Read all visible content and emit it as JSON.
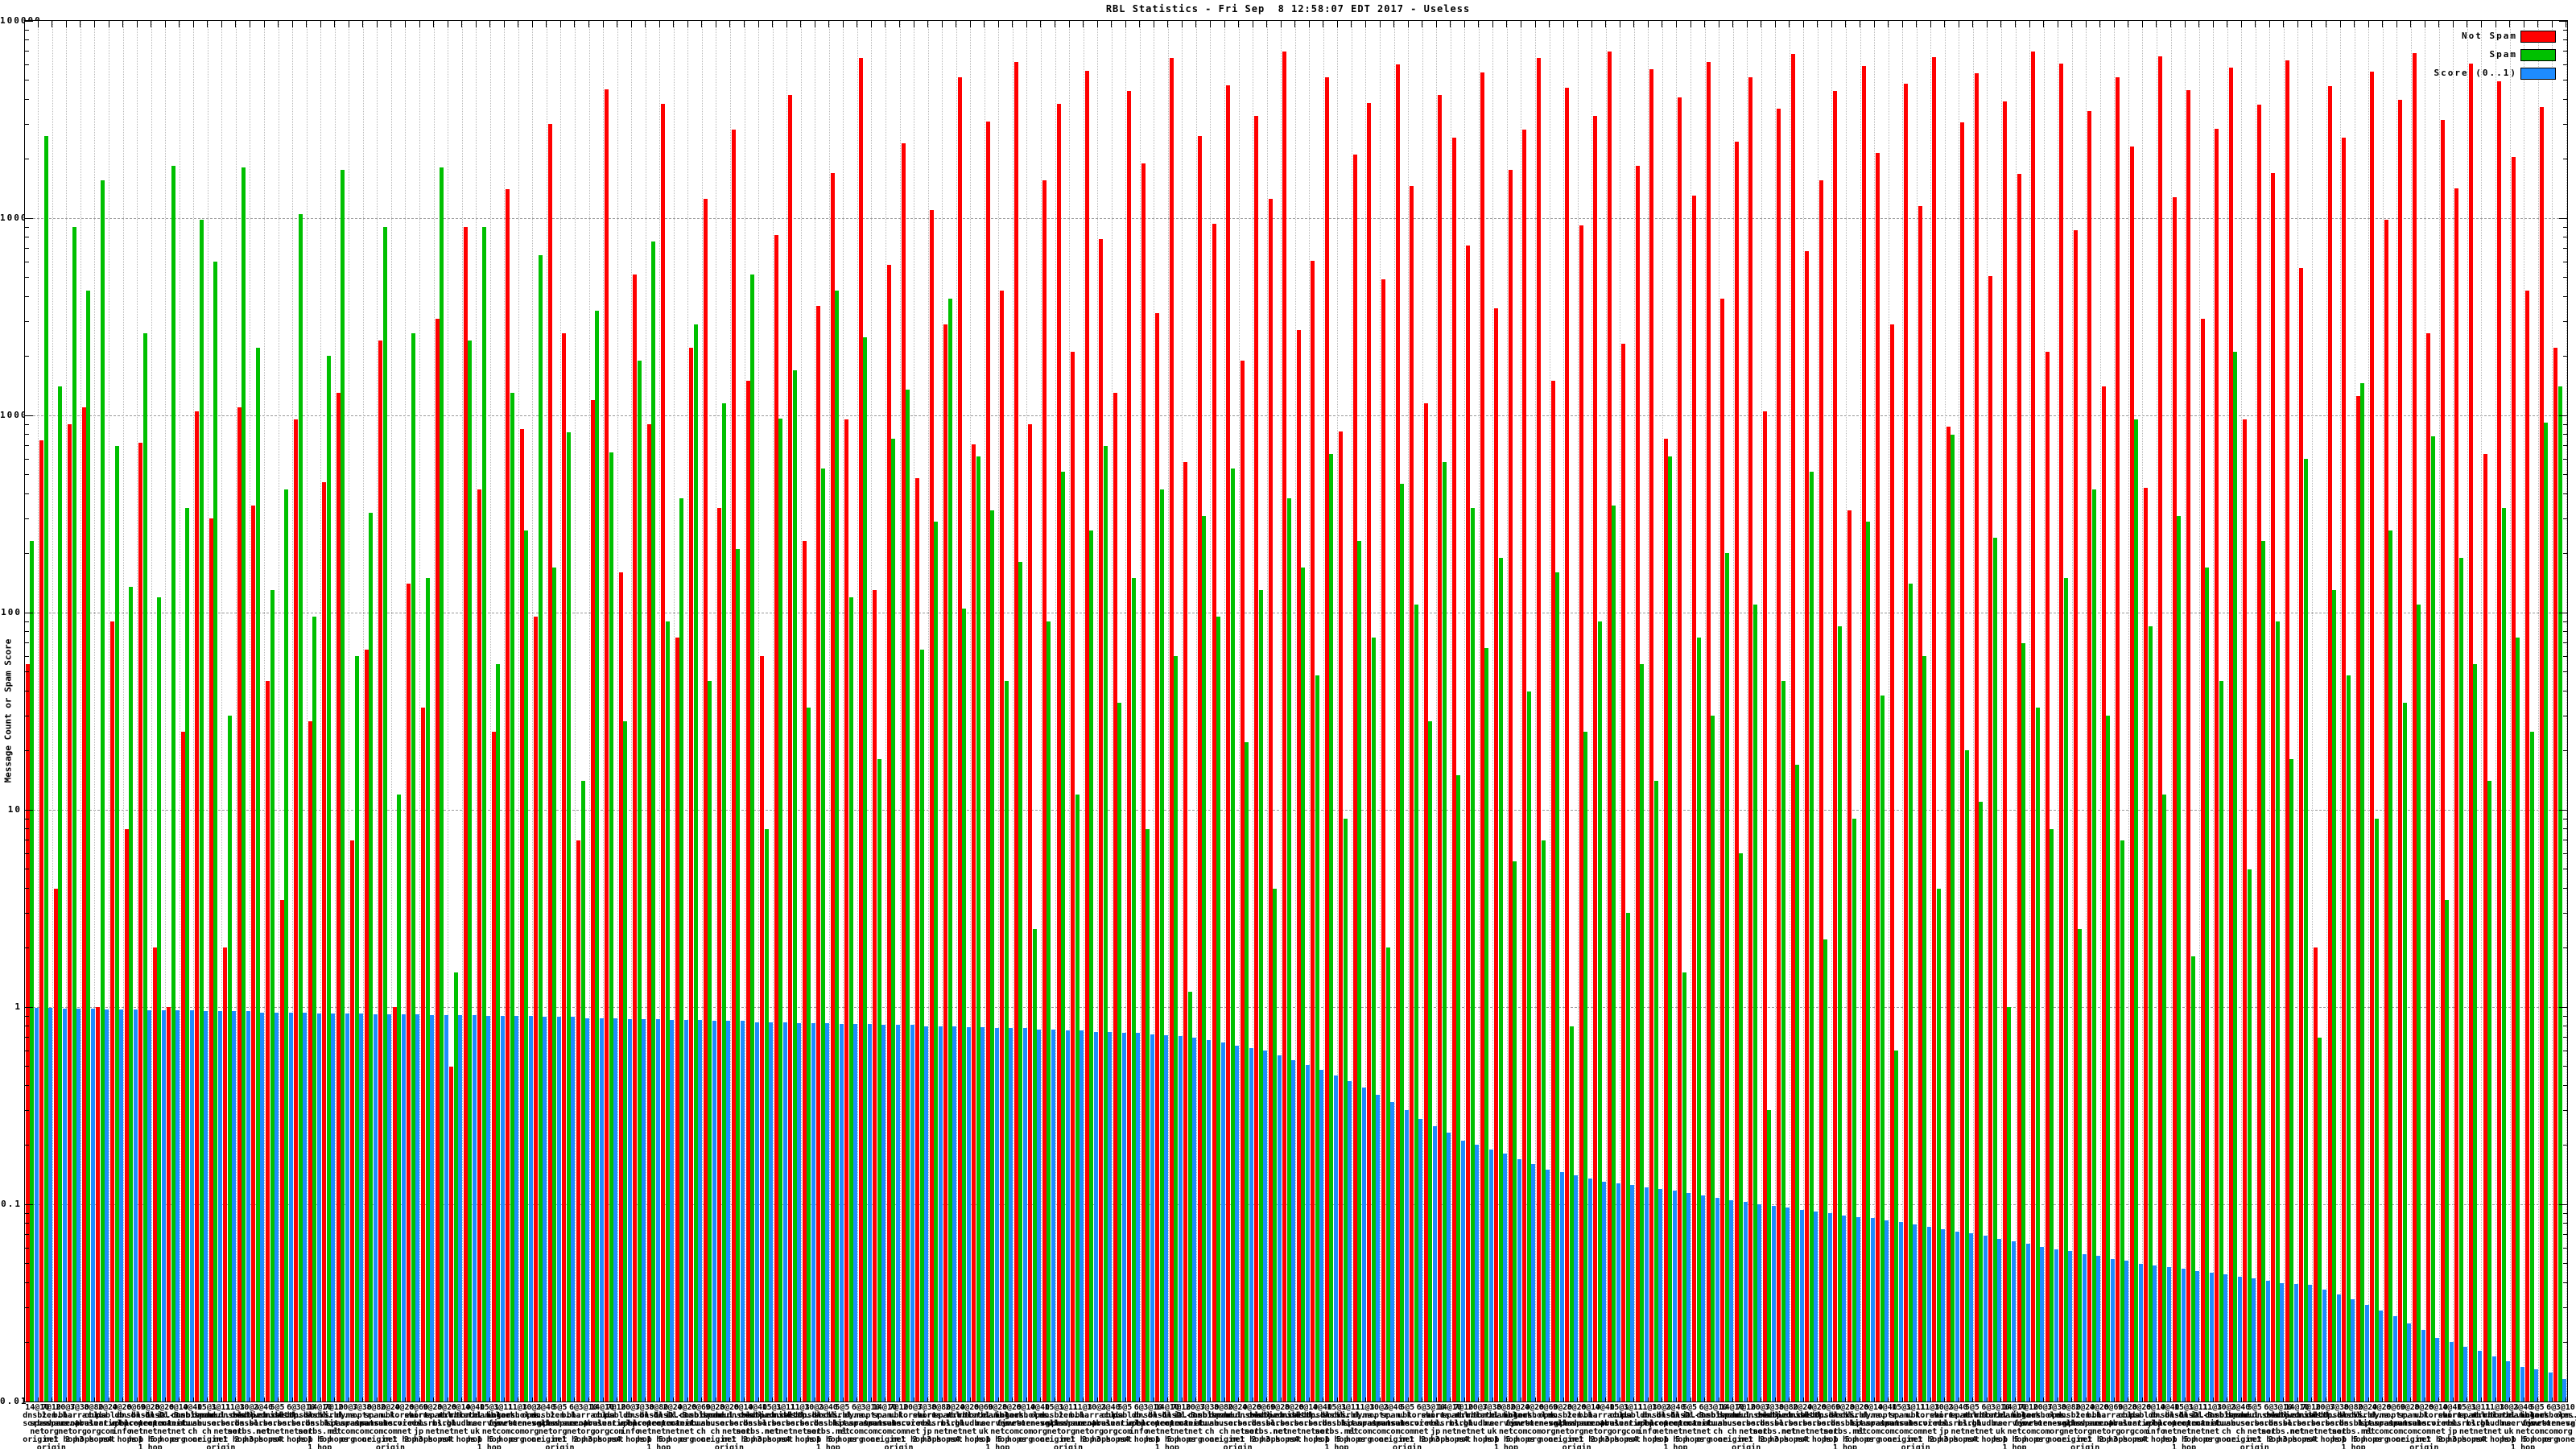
{
  "window": {
    "title": "RBL Statistics - Fri Sep  8 12:58:07 EDT 2017 - Useless"
  },
  "y_axis": {
    "label": "Message Count or Spam Score",
    "ticks": [
      "100000",
      "10000",
      "1000",
      "100",
      "10",
      "1",
      "0.1",
      "0.01"
    ],
    "tick_values": [
      100000,
      10000,
      1000,
      100,
      10,
      1,
      0.1,
      0.01
    ]
  },
  "legend": {
    "position": "top-right",
    "items": [
      {
        "label": "Not Spam",
        "color": "#ff0000"
      },
      {
        "label": "Spam",
        "color": "#00c000"
      },
      {
        "label": "Score (0..1)",
        "color": "#1e8cff"
      }
    ]
  },
  "chart_data": {
    "type": "bar",
    "scale": "log",
    "title": "RBL Statistics - Fri Sep  8 12:58:07 EDT 2017 - Useless",
    "xlabel": "",
    "ylabel": "Message Count or Spam Score",
    "ylim": [
      0.01,
      100000
    ],
    "baseline": 0.01,
    "grid": {
      "vertical": "dotted per category",
      "horizontal": "dashed per decade"
    },
    "legend_position": "top-right",
    "series": [
      {
        "name": "Not Spam",
        "color": "#ff0000",
        "values": [
          55,
          750,
          4,
          900,
          1100,
          1,
          90,
          8,
          730,
          2,
          1,
          25,
          1050,
          300,
          2,
          1100,
          350,
          45,
          3.5,
          950,
          28,
          460,
          1300,
          7,
          65,
          2400,
          1,
          140,
          33,
          3100,
          0.5,
          9000,
          420,
          25,
          14000,
          850,
          95,
          30000,
          2600,
          7,
          1200,
          45000,
          160,
          5200,
          900,
          38000,
          75,
          2200,
          12500,
          340,
          28000,
          1500,
          60,
          8200,
          42000,
          230,
          3600,
          17000,
          950,
          65000,
          130,
          5800,
          24000,
          480,
          11000,
          2900,
          52000,
          710,
          31000,
          4300,
          62000,
          900,
          15500,
          38000,
          2100,
          56000,
          7800,
          1300,
          44000,
          19000,
          3300,
          65000,
          580,
          26000,
          9400,
          47000,
          1900,
          33000,
          12500,
          70000,
          2700,
          6100,
          52000,
          830,
          21000,
          38500,
          4900,
          60000,
          14500,
          1150,
          42000,
          25500,
          7300,
          55000,
          3500,
          17500,
          28000,
          65000,
          1500,
          46000,
          9200,
          33000,
          70000,
          2300,
          18500,
          57000,
          760,
          41000,
          13000,
          62000,
          3900,
          24500,
          52000,
          1050,
          36000,
          68000,
          6800,
          15500,
          44000,
          330,
          59000,
          21500,
          2900,
          48000,
          11500,
          65500,
          880,
          30500,
          54500,
          5100,
          39000,
          16800,
          70000,
          2100,
          61000,
          8700,
          35000,
          1400,
          52000,
          23000,
          430,
          66000,
          12800,
          44500,
          3100,
          28500,
          58000,
          950,
          37500,
          17000,
          63000,
          5600,
          2,
          46500,
          25500,
          1250,
          55500,
          9800,
          40000,
          68500,
          2600,
          31500,
          14200,
          60500,
          640,
          49500,
          20500,
          4300,
          36500,
          2200
        ]
      },
      {
        "name": "Spam",
        "color": "#00c000",
        "values": [
          230,
          26000,
          1400,
          9000,
          4300,
          15500,
          700,
          135,
          2600,
          120,
          18500,
          340,
          9800,
          6000,
          30,
          18000,
          2200,
          130,
          420,
          10500,
          95,
          2000,
          17500,
          60,
          320,
          9000,
          12,
          2600,
          150,
          18000,
          1.5,
          2400,
          9000,
          55,
          1300,
          260,
          6500,
          170,
          820,
          14,
          3400,
          650,
          28,
          1900,
          7600,
          90,
          380,
          2900,
          45,
          1150,
          210,
          5200,
          8,
          960,
          1700,
          33,
          540,
          4300,
          120,
          2500,
          18,
          760,
          1350,
          65,
          290,
          3900,
          105,
          620,
          330,
          45,
          180,
          2.5,
          90,
          520,
          12,
          260,
          700,
          35,
          150,
          8,
          420,
          60,
          1.2,
          310,
          95,
          540,
          22,
          130,
          4,
          380,
          170,
          48,
          640,
          9,
          230,
          75,
          2,
          450,
          110,
          28,
          580,
          15,
          340,
          66,
          190,
          5.5,
          40,
          7,
          160,
          0.8,
          25,
          90,
          350,
          3,
          55,
          14,
          620,
          1.5,
          75,
          30,
          200,
          6,
          110,
          0.3,
          45,
          17,
          520,
          2.2,
          85,
          9,
          290,
          38,
          0.6,
          140,
          60,
          4,
          800,
          20,
          11,
          240,
          1,
          70,
          33,
          8,
          150,
          2.5,
          420,
          30,
          7,
          950,
          85,
          12,
          310,
          1.8,
          170,
          45,
          2100,
          5,
          230,
          90,
          18,
          600,
          0.7,
          130,
          48,
          1450,
          9,
          260,
          35,
          110,
          780,
          3.5,
          190,
          55,
          14,
          340,
          75,
          25,
          920,
          1400
        ]
      },
      {
        "name": "Score (0..1)",
        "color": "#1e8cff",
        "values": [
          0.99,
          0.99,
          0.98,
          0.98,
          0.98,
          0.97,
          0.97,
          0.97,
          0.96,
          0.96,
          0.96,
          0.96,
          0.95,
          0.95,
          0.95,
          0.95,
          0.94,
          0.94,
          0.94,
          0.94,
          0.93,
          0.93,
          0.93,
          0.93,
          0.92,
          0.92,
          0.92,
          0.92,
          0.91,
          0.91,
          0.91,
          0.91,
          0.9,
          0.9,
          0.9,
          0.9,
          0.89,
          0.89,
          0.89,
          0.88,
          0.88,
          0.88,
          0.87,
          0.87,
          0.87,
          0.86,
          0.86,
          0.86,
          0.85,
          0.85,
          0.85,
          0.84,
          0.84,
          0.84,
          0.83,
          0.83,
          0.83,
          0.82,
          0.82,
          0.82,
          0.81,
          0.81,
          0.81,
          0.8,
          0.8,
          0.8,
          0.79,
          0.79,
          0.78,
          0.78,
          0.78,
          0.77,
          0.77,
          0.76,
          0.76,
          0.75,
          0.75,
          0.74,
          0.74,
          0.73,
          0.72,
          0.71,
          0.7,
          0.68,
          0.66,
          0.64,
          0.62,
          0.6,
          0.57,
          0.54,
          0.51,
          0.48,
          0.45,
          0.42,
          0.39,
          0.36,
          0.33,
          0.3,
          0.27,
          0.25,
          0.23,
          0.21,
          0.2,
          0.19,
          0.18,
          0.17,
          0.16,
          0.15,
          0.145,
          0.14,
          0.135,
          0.13,
          0.128,
          0.125,
          0.122,
          0.12,
          0.117,
          0.114,
          0.111,
          0.108,
          0.105,
          0.103,
          0.1,
          0.098,
          0.096,
          0.094,
          0.092,
          0.09,
          0.088,
          0.086,
          0.085,
          0.083,
          0.081,
          0.079,
          0.077,
          0.075,
          0.073,
          0.071,
          0.069,
          0.067,
          0.065,
          0.063,
          0.061,
          0.059,
          0.058,
          0.056,
          0.055,
          0.053,
          0.052,
          0.05,
          0.049,
          0.048,
          0.047,
          0.046,
          0.045,
          0.044,
          0.043,
          0.042,
          0.041,
          0.04,
          0.0395,
          0.039,
          0.037,
          0.035,
          0.033,
          0.031,
          0.029,
          0.027,
          0.025,
          0.023,
          0.021,
          0.02,
          0.019,
          0.018,
          0.017,
          0.016,
          0.015,
          0.0145,
          0.014,
          0.013
        ]
      }
    ],
    "categories": [
      "14@10\ndnsbl.\nsorbs.\nnet\norigin",
      "7@10\nzen.\nspamhaus.\norg\nnet\norigin",
      "20@7\nbl.\nspamcop.\nnet\n1 hop",
      "3@30\nb.barracuda\ncentral.\norg\n2 hops",
      "8@80\ncbl.\nabuseat.\norg\n3 hops",
      "2@20\npsbl.\nsurriel.\ncom\nnot",
      "4@20\ndb.\nwpbl.\ninfo\n4 hops",
      "6@60\ndnsbl-1.\nuceprotect.\nnet\nhop",
      "9@20\ndnsbl-2.\nuceprotect.\nnet\n1 hop\n1 hop",
      "8@20\ndnsbl-3.\nuceprotect.\nnet\n5 hops",
      "6@10\nix.dnsbl.\nmanitu.\nnet\norg",
      "4@40\ncombined.\nabuse.\nch\nnone",
      "15@1\ndrone.\nabuse.\nch\norigin",
      "3@11\nspam.dnsbl.\nsorbs.\nnet\nnet\norigin",
      "11@3\ndul.dnsbl.\nsorbs.\nnet\n1 hop",
      "10@3\nzombie.\ndnsbl.\nsorbs.net\n2 hops",
      "2@40\nsmtp.dnsbl.\nsorbs.\nnet\n3 hops",
      "5@5\nweb.dnsbl.\nsorbs.\nnet\nnot",
      "6@\nmisc.dnsbl.\nsorbs.\nnet\n4 hops",
      "3@10\nhttp.dnsbl.\nsorbs.\nnet\nhop",
      "14@10\nsocks.\ndnsbl.\nsorbs.net\n1 hop\n1 hop",
      "7@10\nvirbl.\nbit.\nnl\n5 hops",
      "20@7\ndyna.\nspamrats.\ncom\norg",
      "3@30\nnoptr.\nspamrats.\ncom\nnone",
      "8@80\nspam.\nspamrats.\ncom\norigin",
      "2@20\nubl.\nunsubscore.\ncom\nnet\norigin",
      "4@20\nkorea.\nservices.\nnet\n1 hop",
      "6@60\nshort.\nrbl.\njp\n2 hops",
      "9@20\nvirus.rbl.\nmsrbl.\nnet\n3 hops",
      "8@20\nspam.rbl.\nmsrbl.\nnet\nnot",
      "6@10\ntruncate.\ngbudb.\nnet\n4 hops",
      "4@40\ntor.dan.\nme.\nuk\nhop",
      "15@1\nrbl.inter\nserver.\nnet\n1 hop\n1 hop",
      "3@11\nbogons.\ncymru.\ncom\n5 hops",
      "11@3\nblackholes.\nfive-ten-sg.\ncom\norg",
      "10@3\nopm.\ntornevall.\norg\nnone",
      "2@40\ndnsbl.\nsorbs.\nnet\norigin",
      "5@5\nzen.\nspamhaus.\norg\nnet\norigin",
      "6@\nbl.\nspamcop.\nnet\n1 hop",
      "3@10\nb.barracuda\ncentral.\norg\n2 hops",
      "14@10\ncbl.\nabuseat.\norg\n3 hops",
      "7@10\npsbl.\nsurriel.\ncom\nnot",
      "20@7\ndb.\nwpbl.\ninfo\n4 hops",
      "3@30\ndnsbl-1.\nuceprotect.\nnet\nhop",
      "8@80\ndnsbl-2.\nuceprotect.\nnet\n1 hop\n1 hop",
      "2@20\ndnsbl-3.\nuceprotect.\nnet\n5 hops",
      "4@20\nix.dnsbl.\nmanitu.\nnet\norg",
      "6@60\ncombined.\nabuse.\nch\nnone",
      "9@20\ndrone.\nabuse.\nch\norigin",
      "8@20\nspam.dnsbl.\nsorbs.\nnet\nnet\norigin",
      "6@10\ndul.dnsbl.\nsorbs.\nnet\n1 hop",
      "4@40\nzombie.\ndnsbl.\nsorbs.net\n2 hops",
      "15@1\nsmtp.dnsbl.\nsorbs.\nnet\n3 hops",
      "3@11\nweb.dnsbl.\nsorbs.\nnet\nnot",
      "11@3\nmisc.dnsbl.\nsorbs.\nnet\n4 hops",
      "10@3\nhttp.dnsbl.\nsorbs.\nnet\nhop",
      "2@40\nsocks.\ndnsbl.\nsorbs.net\n1 hop\n1 hop",
      "5@5\nvirbl.\nbit.\nnl\n5 hops",
      "6@\ndyna.\nspamrats.\ncom\norg",
      "3@10\nnoptr.\nspamrats.\ncom\nnone",
      "14@10\nspam.\nspamrats.\ncom\norigin",
      "7@10\nubl.\nunsubscore.\ncom\nnet\norigin",
      "20@7\nkorea.\nservices.\nnet\n1 hop",
      "3@30\nshort.\nrbl.\njp\n2 hops",
      "8@80\nvirus.rbl.\nmsrbl.\nnet\n3 hops",
      "2@20\nspam.rbl.\nmsrbl.\nnet\nnot",
      "4@20\ntruncate.\ngbudb.\nnet\n4 hops",
      "6@60\ntor.dan.\nme.\nuk\nhop",
      "9@20\nrbl.inter\nserver.\nnet\n1 hop\n1 hop",
      "8@20\nbogons.\ncymru.\ncom\n5 hops",
      "6@10\nblackholes.\nfive-ten-sg.\ncom\norg",
      "4@40\nopm.\ntornevall.\norg\nnone",
      "15@1\ndnsbl.\nsorbs.\nnet\norigin",
      "3@11\nzen.\nspamhaus.\norg\nnet\norigin",
      "11@3\nbl.\nspamcop.\nnet\n1 hop",
      "10@3\nb.barracuda\ncentral.\norg\n2 hops",
      "2@40\ncbl.\nabuseat.\norg\n3 hops",
      "5@5\npsbl.\nsurriel.\ncom\nnot",
      "6@\ndb.\nwpbl.\ninfo\n4 hops",
      "3@10\ndnsbl-1.\nuceprotect.\nnet\nhop",
      "14@10\ndnsbl-2.\nuceprotect.\nnet\n1 hop\n1 hop",
      "7@10\ndnsbl-3.\nuceprotect.\nnet\n5 hops",
      "20@7\nix.dnsbl.\nmanitu.\nnet\norg",
      "3@30\ncombined.\nabuse.\nch\nnone",
      "8@80\ndrone.\nabuse.\nch\norigin",
      "2@20\nspam.dnsbl.\nsorbs.\nnet\nnet\norigin",
      "4@20\ndul.dnsbl.\nsorbs.\nnet\n1 hop",
      "6@60\nzombie.\ndnsbl.\nsorbs.net\n2 hops",
      "9@20\nsmtp.dnsbl.\nsorbs.\nnet\n3 hops",
      "8@20\nweb.dnsbl.\nsorbs.\nnet\nnot",
      "6@10\nmisc.dnsbl.\nsorbs.\nnet\n4 hops",
      "4@40\nhttp.dnsbl.\nsorbs.\nnet\nhop",
      "15@1\nsocks.\ndnsbl.\nsorbs.net\n1 hop\n1 hop",
      "3@11\nvirbl.\nbit.\nnl\n5 hops",
      "11@3\ndyna.\nspamrats.\ncom\norg",
      "10@3\nnoptr.\nspamrats.\ncom\nnone",
      "2@40\nspam.\nspamrats.\ncom\norigin",
      "5@5\nubl.\nunsubscore.\ncom\nnet\norigin",
      "6@\nkorea.\nservices.\nnet\n1 hop",
      "3@10\nshort.\nrbl.\njp\n2 hops",
      "14@10\nvirus.rbl.\nmsrbl.\nnet\n3 hops",
      "7@10\nspam.rbl.\nmsrbl.\nnet\nnot",
      "20@7\ntruncate.\ngbudb.\nnet\n4 hops",
      "3@30\ntor.dan.\nme.\nuk\nhop",
      "8@80\nrbl.inter\nserver.\nnet\n1 hop\n1 hop",
      "2@20\nbogons.\ncymru.\ncom\n5 hops",
      "4@20\nblackholes.\nfive-ten-sg.\ncom\norg",
      "6@60\nopm.\ntornevall.\norg\nnone",
      "9@20\ndnsbl.\nsorbs.\nnet\norigin",
      "8@20\nzen.\nspamhaus.\norg\nnet\norigin",
      "6@10\nbl.\nspamcop.\nnet\n1 hop",
      "4@40\nb.barracuda\ncentral.\norg\n2 hops",
      "15@1\ncbl.\nabuseat.\norg\n3 hops",
      "3@11\npsbl.\nsurriel.\ncom\nnot",
      "11@3\ndb.\nwpbl.\ninfo\n4 hops",
      "10@3\ndnsbl-1.\nuceprotect.\nnet\nhop",
      "2@40\ndnsbl-2.\nuceprotect.\nnet\n1 hop\n1 hop",
      "5@5\ndnsbl-3.\nuceprotect.\nnet\n5 hops",
      "6@\nix.dnsbl.\nmanitu.\nnet\norg",
      "3@10\ncombined.\nabuse.\nch\nnone",
      "14@10\ndrone.\nabuse.\nch\norigin",
      "7@10\nspam.dnsbl.\nsorbs.\nnet\nnet\norigin",
      "20@7\ndul.dnsbl.\nsorbs.\nnet\n1 hop",
      "3@30\nzombie.\ndnsbl.\nsorbs.net\n2 hops",
      "8@80\nsmtp.dnsbl.\nsorbs.\nnet\n3 hops",
      "2@20\nweb.dnsbl.\nsorbs.\nnet\nnot",
      "4@20\nmisc.dnsbl.\nsorbs.\nnet\n4 hops",
      "6@60\nhttp.dnsbl.\nsorbs.\nnet\nhop",
      "9@20\nsocks.\ndnsbl.\nsorbs.net\n1 hop\n1 hop",
      "8@20\nvirbl.\nbit.\nnl\n5 hops",
      "6@10\ndyna.\nspamrats.\ncom\norg",
      "4@40\nnoptr.\nspamrats.\ncom\nnone",
      "15@1\nspam.\nspamrats.\ncom\norigin",
      "3@11\nubl.\nunsubscore.\ncom\nnet\norigin",
      "11@3\nkorea.\nservices.\nnet\n1 hop",
      "10@3\nshort.\nrbl.\njp\n2 hops",
      "2@40\nvirus.rbl.\nmsrbl.\nnet\n3 hops",
      "5@5\nspam.rbl.\nmsrbl.\nnet\nnot",
      "6@\ntruncate.\ngbudb.\nnet\n4 hops",
      "3@10\ntor.dan.\nme.\nuk\nhop",
      "14@10\nrbl.inter\nserver.\nnet\n1 hop\n1 hop",
      "7@10\nbogons.\ncymru.\ncom\n5 hops",
      "20@7\nblackholes.\nfive-ten-sg.\ncom\norg",
      "3@30\nopm.\ntornevall.\norg\nnone",
      "8@80\ndnsbl.\nsorbs.\nnet\norigin",
      "2@20\nzen.\nspamhaus.\norg\nnet\norigin",
      "4@20\nbl.\nspamcop.\nnet\n1 hop",
      "6@60\nb.barracuda\ncentral.\norg\n2 hops",
      "9@20\ncbl.\nabuseat.\norg\n3 hops",
      "8@20\npsbl.\nsurriel.\ncom\nnot",
      "6@10\ndb.\nwpbl.\ninfo\n4 hops",
      "4@40\ndnsbl-1.\nuceprotect.\nnet\nhop",
      "15@1\ndnsbl-2.\nuceprotect.\nnet\n1 hop\n1 hop",
      "3@11\ndnsbl-3.\nuceprotect.\nnet\n5 hops",
      "11@3\nix.dnsbl.\nmanitu.\nnet\norg",
      "10@3\ncombined.\nabuse.\nch\nnone",
      "2@40\ndrone.\nabuse.\nch\norigin",
      "5@5\nspam.dnsbl.\nsorbs.\nnet\nnet\norigin",
      "6@\ndul.dnsbl.\nsorbs.\nnet\n1 hop",
      "3@10\nzombie.\ndnsbl.\nsorbs.net\n2 hops",
      "14@10\nsmtp.dnsbl.\nsorbs.\nnet\n3 hops",
      "7@10\nweb.dnsbl.\nsorbs.\nnet\nnot",
      "20@7\nmisc.dnsbl.\nsorbs.\nnet\n4 hops",
      "3@30\nhttp.dnsbl.\nsorbs.\nnet\nhop",
      "8@80\nsocks.\ndnsbl.\nsorbs.net\n1 hop\n1 hop",
      "2@20\nvirbl.\nbit.\nnl\n5 hops",
      "4@20\ndyna.\nspamrats.\ncom\norg",
      "6@60\nnoptr.\nspamrats.\ncom\nnone",
      "9@20\nspam.\nspamrats.\ncom\norigin",
      "8@20\nubl.\nunsubscore.\ncom\nnet\norigin",
      "6@10\nkorea.\nservices.\nnet\n1 hop",
      "4@40\nshort.\nrbl.\njp\n2 hops",
      "15@1\nvirus.rbl.\nmsrbl.\nnet\n3 hops",
      "3@11\nspam.rbl.\nmsrbl.\nnet\nnot",
      "11@3\ntruncate.\ngbudb.\nnet\n4 hops",
      "10@3\ntor.dan.\nme.\nuk\nhop",
      "2@40\nrbl.inter\nserver.\nnet\n1 hop\n1 hop",
      "5@5\nbogons.\ncymru.\ncom\n5 hops",
      "6@\nblackholes.\nfive-ten-sg.\ncom\norg",
      "3@10\nopm.\ntornevall.\norg\nnone"
    ]
  }
}
